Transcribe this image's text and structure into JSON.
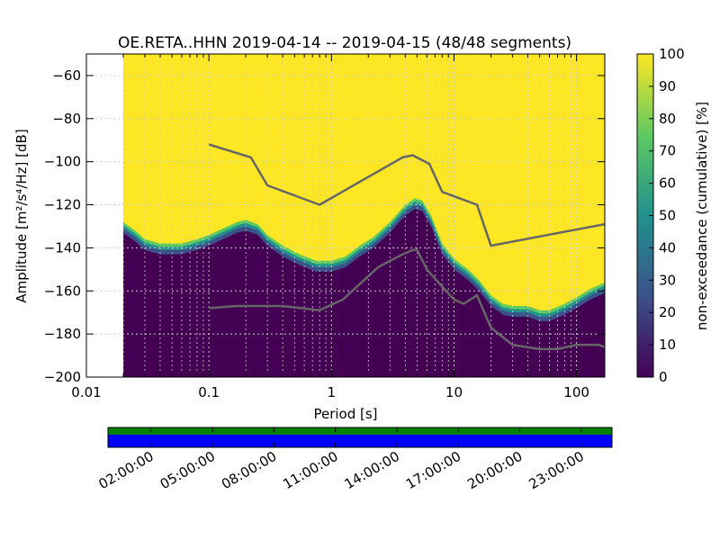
{
  "chart_data": {
    "type": "heatmap",
    "title": "OE.RETA..HHN   2019-04-14 -- 2019-04-15  (48/48 segments)",
    "xlabel": "Period [s]",
    "ylabel": "Amplitude [m²/s⁴/Hz] [dB]",
    "x_scale": "log",
    "xlim": [
      0.01,
      170
    ],
    "ylim": [
      -200,
      -50
    ],
    "x_ticks": [
      {
        "value": 0.01,
        "label": "0.01"
      },
      {
        "value": 0.1,
        "label": "0.1"
      },
      {
        "value": 1,
        "label": "1"
      },
      {
        "value": 10,
        "label": "10"
      },
      {
        "value": 100,
        "label": "100"
      }
    ],
    "y_ticks": [
      {
        "value": -60,
        "label": "−60"
      },
      {
        "value": -80,
        "label": "−80"
      },
      {
        "value": -100,
        "label": "−100"
      },
      {
        "value": -120,
        "label": "−120"
      },
      {
        "value": -140,
        "label": "−140"
      },
      {
        "value": -160,
        "label": "−160"
      },
      {
        "value": -180,
        "label": "−180"
      },
      {
        "value": -200,
        "label": "−200"
      }
    ],
    "data_x_start": 0.02,
    "noise_floor_db": [
      [
        0.02,
        -133
      ],
      [
        0.025,
        -137
      ],
      [
        0.03,
        -141
      ],
      [
        0.04,
        -143
      ],
      [
        0.06,
        -143
      ],
      [
        0.08,
        -141
      ],
      [
        0.1,
        -139
      ],
      [
        0.13,
        -136
      ],
      [
        0.17,
        -133
      ],
      [
        0.2,
        -132
      ],
      [
        0.25,
        -134
      ],
      [
        0.3,
        -139
      ],
      [
        0.4,
        -144
      ],
      [
        0.55,
        -148
      ],
      [
        0.75,
        -151
      ],
      [
        1.0,
        -151
      ],
      [
        1.3,
        -149
      ],
      [
        1.7,
        -144
      ],
      [
        2.2,
        -140
      ],
      [
        3.0,
        -133
      ],
      [
        4.0,
        -125
      ],
      [
        4.8,
        -122
      ],
      [
        5.5,
        -123
      ],
      [
        6.5,
        -130
      ],
      [
        8.0,
        -143
      ],
      [
        10,
        -150
      ],
      [
        13,
        -155
      ],
      [
        16,
        -160
      ],
      [
        20,
        -167
      ],
      [
        25,
        -171
      ],
      [
        30,
        -172
      ],
      [
        40,
        -172
      ],
      [
        50,
        -174
      ],
      [
        60,
        -174
      ],
      [
        80,
        -171
      ],
      [
        100,
        -168
      ],
      [
        130,
        -164
      ],
      [
        170,
        -161
      ]
    ],
    "transition_width_db": 5,
    "colorbar": {
      "label": "non-exceedance (cumulative) [%]",
      "min": 0,
      "max": 100,
      "ticks": [
        {
          "value": 0,
          "label": "0"
        },
        {
          "value": 10,
          "label": "10"
        },
        {
          "value": 20,
          "label": "20"
        },
        {
          "value": 30,
          "label": "30"
        },
        {
          "value": 40,
          "label": "40"
        },
        {
          "value": 50,
          "label": "50"
        },
        {
          "value": 60,
          "label": "60"
        },
        {
          "value": 70,
          "label": "70"
        },
        {
          "value": 80,
          "label": "80"
        },
        {
          "value": 90,
          "label": "90"
        },
        {
          "value": 100,
          "label": "100"
        }
      ],
      "stops": [
        "#440154",
        "#3b528b",
        "#21918c",
        "#5ec962",
        "#fde725"
      ]
    },
    "series": [
      {
        "color": "#666666",
        "points": [
          [
            0.1,
            -92
          ],
          [
            0.22,
            -98
          ],
          [
            0.3,
            -111
          ],
          [
            0.8,
            -120
          ],
          [
            3.8,
            -98
          ],
          [
            4.6,
            -97
          ],
          [
            6.3,
            -101
          ],
          [
            8,
            -114
          ],
          [
            15.4,
            -120
          ],
          [
            20,
            -139
          ],
          [
            170,
            -129
          ]
        ]
      },
      {
        "color": "#666666",
        "points": [
          [
            0.1,
            -168
          ],
          [
            0.17,
            -167
          ],
          [
            0.4,
            -167
          ],
          [
            0.8,
            -169
          ],
          [
            1.24,
            -164
          ],
          [
            2.4,
            -149
          ],
          [
            3.8,
            -143
          ],
          [
            4.6,
            -141
          ],
          [
            5,
            -141
          ],
          [
            6,
            -150
          ],
          [
            8,
            -158
          ],
          [
            10,
            -164
          ],
          [
            12,
            -166
          ],
          [
            15.4,
            -162
          ],
          [
            20,
            -177
          ],
          [
            30,
            -185
          ],
          [
            50,
            -187
          ],
          [
            70,
            -187
          ],
          [
            100,
            -185
          ],
          [
            150,
            -185
          ],
          [
            170,
            -186
          ]
        ]
      }
    ],
    "grid": true,
    "timeline": {
      "bar_colors": [
        "#008000",
        "#0000ff"
      ],
      "tick_labels": [
        "02:00:00",
        "05:00:00",
        "08:00:00",
        "11:00:00",
        "14:00:00",
        "17:00:00",
        "20:00:00",
        "23:00:00"
      ]
    }
  }
}
